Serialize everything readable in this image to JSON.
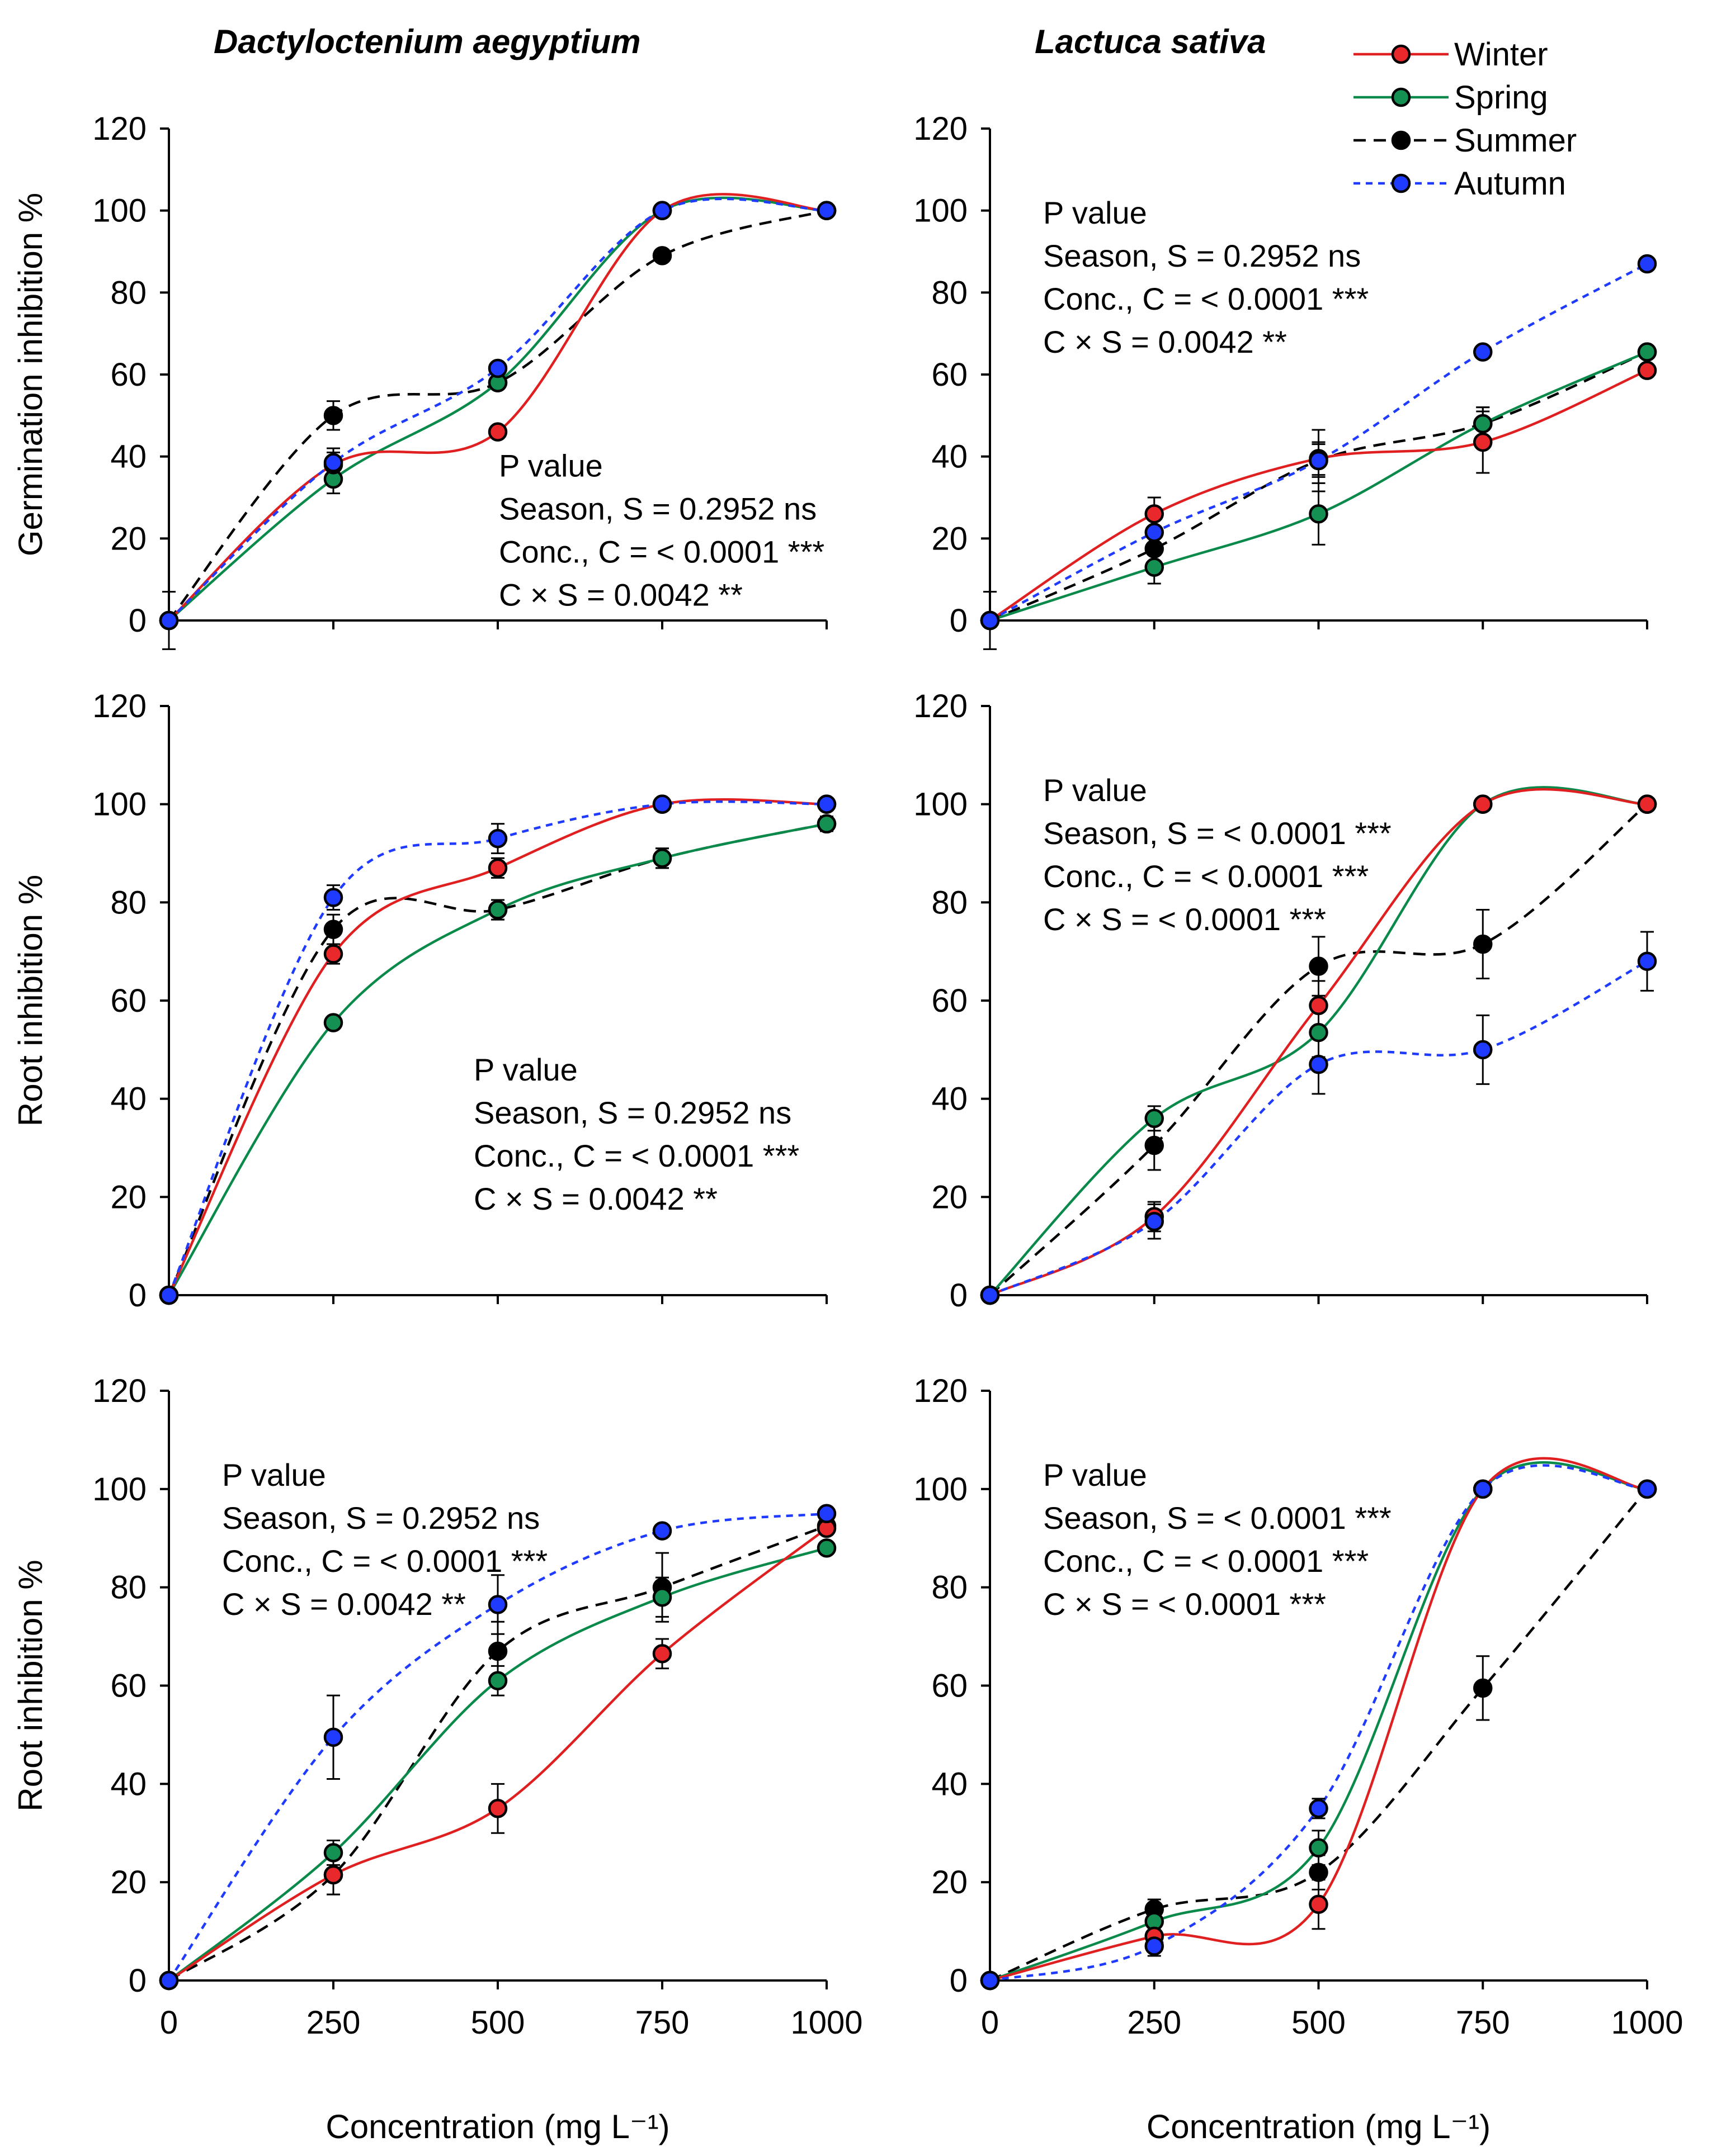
{
  "chart_data": {
    "type": "line",
    "x": [
      0,
      250,
      500,
      750,
      1000
    ],
    "xlim": [
      0,
      1000
    ],
    "ylim": [
      0,
      120
    ],
    "x_ticks": [
      "0",
      "250",
      "500",
      "750",
      "1000"
    ],
    "y_ticks": [
      "0",
      "20",
      "40",
      "60",
      "80",
      "100",
      "120"
    ],
    "xlabel": "Concentration (mg L⁻¹)",
    "legend": [
      {
        "name": "Winter",
        "color": "#e8282b",
        "dash": "solid"
      },
      {
        "name": "Spring",
        "color": "#109158",
        "dash": "solid"
      },
      {
        "name": "Summer",
        "color": "#000000",
        "dash": "dashed"
      },
      {
        "name": "Autumn",
        "color": "#1f3bff",
        "dash": "dotted"
      }
    ],
    "series_colors": {
      "Winter": "#e8282b",
      "Spring": "#149152",
      "Summer": "#000000",
      "Autumn": "#1f3bff"
    },
    "line_colors": {
      "Winter": "#e02020",
      "Spring": "#0a8a4a",
      "Summer": "#000000",
      "Autumn": "#1f3bff"
    },
    "panels": [
      {
        "title": "Dactyloctenium aegyptium",
        "ylabel": "Germination inhibition %",
        "stats": [
          "P value",
          "Season, S = 0.2952 ns",
          "Conc., C = < 0.0001 ***",
          "C × S = 0.0042 **"
        ],
        "stats_position": "center-right",
        "series": [
          {
            "name": "Winter",
            "values": [
              0,
              38,
              46,
              100,
              100
            ],
            "errors": [
              0,
              3,
              1.5,
              0.5,
              0
            ]
          },
          {
            "name": "Spring",
            "values": [
              0,
              34.5,
              58,
              100,
              100
            ],
            "errors": [
              0,
              3.5,
              1.5,
              0.5,
              0
            ]
          },
          {
            "name": "Summer",
            "values": [
              0,
              50,
              58,
              89,
              100
            ],
            "errors": [
              7,
              3.5,
              1.5,
              0.5,
              0
            ]
          },
          {
            "name": "Autumn",
            "values": [
              0,
              38.5,
              61.5,
              100,
              100
            ],
            "errors": [
              0,
              3.5,
              1.5,
              0.5,
              0
            ]
          }
        ]
      },
      {
        "title": "Lactuca sativa",
        "ylabel": "",
        "stats": [
          "P value",
          "Season, S = 0.2952 ns",
          "Conc., C = < 0.0001 ***",
          "C × S = 0.0042 **"
        ],
        "stats_position": "top-left",
        "series": [
          {
            "name": "Winter",
            "values": [
              0,
              26,
              39.5,
              43.5,
              61
            ],
            "errors": [
              0,
              4,
              4,
              7.5,
              0.5
            ]
          },
          {
            "name": "Spring",
            "values": [
              0,
              13,
              26,
              48,
              65.5
            ],
            "errors": [
              0,
              4,
              7.5,
              4,
              0.5
            ]
          },
          {
            "name": "Summer",
            "values": [
              0,
              17.5,
              39,
              48,
              65.5
            ],
            "errors": [
              7,
              4,
              7.5,
              4,
              0.5
            ]
          },
          {
            "name": "Autumn",
            "values": [
              0,
              21.5,
              39,
              65.5,
              87
            ],
            "errors": [
              0,
              4,
              4,
              0.5,
              0.5
            ]
          }
        ]
      },
      {
        "title": "",
        "ylabel": "Root inhibition %",
        "stats": [
          "P value",
          "Season, S = 0.2952 ns",
          "Conc., C = < 0.0001 ***",
          "C × S = 0.0042 **"
        ],
        "stats_position": "center",
        "series": [
          {
            "name": "Winter",
            "values": [
              0,
              69.5,
              87,
              100,
              100
            ],
            "errors": [
              0,
              2,
              2,
              0.5,
              0
            ]
          },
          {
            "name": "Spring",
            "values": [
              0,
              55.5,
              78.5,
              89,
              96
            ],
            "errors": [
              0,
              1,
              2,
              2,
              1.5
            ]
          },
          {
            "name": "Summer",
            "values": [
              0,
              74.5,
              78.5,
              89,
              96
            ],
            "errors": [
              0,
              3,
              2,
              2,
              1.5
            ]
          },
          {
            "name": "Autumn",
            "values": [
              0,
              81,
              93,
              100,
              100
            ],
            "errors": [
              0,
              2.5,
              3,
              0.5,
              0
            ]
          }
        ]
      },
      {
        "title": "",
        "ylabel": "",
        "stats": [
          "P value",
          "Season, S = < 0.0001 ***",
          "Conc., C = < 0.0001 ***",
          "C × S = < 0.0001 ***"
        ],
        "stats_position": "top-left",
        "series": [
          {
            "name": "Winter",
            "values": [
              0,
              16,
              59,
              100,
              100
            ],
            "errors": [
              0,
              3,
              5,
              0.5,
              0
            ]
          },
          {
            "name": "Spring",
            "values": [
              0,
              36,
              53.5,
              100,
              100
            ],
            "errors": [
              0,
              2.5,
              5,
              0.5,
              0
            ]
          },
          {
            "name": "Summer",
            "values": [
              0,
              30.5,
              67,
              71.5,
              100
            ],
            "errors": [
              0,
              5,
              6,
              7,
              0.5
            ]
          },
          {
            "name": "Autumn",
            "values": [
              0,
              15,
              47,
              50,
              68
            ],
            "errors": [
              0,
              3.5,
              6,
              7,
              6
            ]
          }
        ]
      },
      {
        "title": "",
        "ylabel": "Root inhibition %",
        "stats": [
          "P value",
          "Season, S = 0.2952 ns",
          "Conc., C = < 0.0001 ***",
          "C × S = 0.0042 **"
        ],
        "stats_position": "top-left",
        "series": [
          {
            "name": "Winter",
            "values": [
              0,
              21.5,
              35,
              66.5,
              92
            ],
            "errors": [
              0,
              4,
              5,
              3,
              1
            ]
          },
          {
            "name": "Spring",
            "values": [
              0,
              26,
              61,
              78,
              88
            ],
            "errors": [
              0,
              2.5,
              3,
              4,
              1
            ]
          },
          {
            "name": "Summer",
            "values": [
              0,
              21.5,
              67,
              80,
              92.5
            ],
            "errors": [
              0,
              4,
              6,
              7,
              1
            ]
          },
          {
            "name": "Autumn",
            "values": [
              0,
              49.5,
              76.5,
              91.5,
              95
            ],
            "errors": [
              0,
              8.5,
              6,
              1,
              1
            ]
          }
        ]
      },
      {
        "title": "",
        "ylabel": "",
        "stats": [
          "P value",
          "Season, S = < 0.0001 ***",
          "Conc., C = < 0.0001 ***",
          "C × S = < 0.0001 ***"
        ],
        "stats_position": "top-left",
        "series": [
          {
            "name": "Winter",
            "values": [
              0,
              9,
              15.5,
              100,
              100
            ],
            "errors": [
              0,
              2,
              5,
              0.5,
              0
            ]
          },
          {
            "name": "Spring",
            "values": [
              0,
              12,
              27,
              100,
              100
            ],
            "errors": [
              0,
              2,
              3.5,
              0.5,
              0
            ]
          },
          {
            "name": "Summer",
            "values": [
              0,
              14.5,
              22,
              59.5,
              100
            ],
            "errors": [
              0,
              2,
              3.5,
              6.5,
              0.5
            ]
          },
          {
            "name": "Autumn",
            "values": [
              0,
              7,
              35,
              100,
              100
            ],
            "errors": [
              0,
              2,
              2,
              0.5,
              0
            ]
          }
        ]
      }
    ]
  }
}
